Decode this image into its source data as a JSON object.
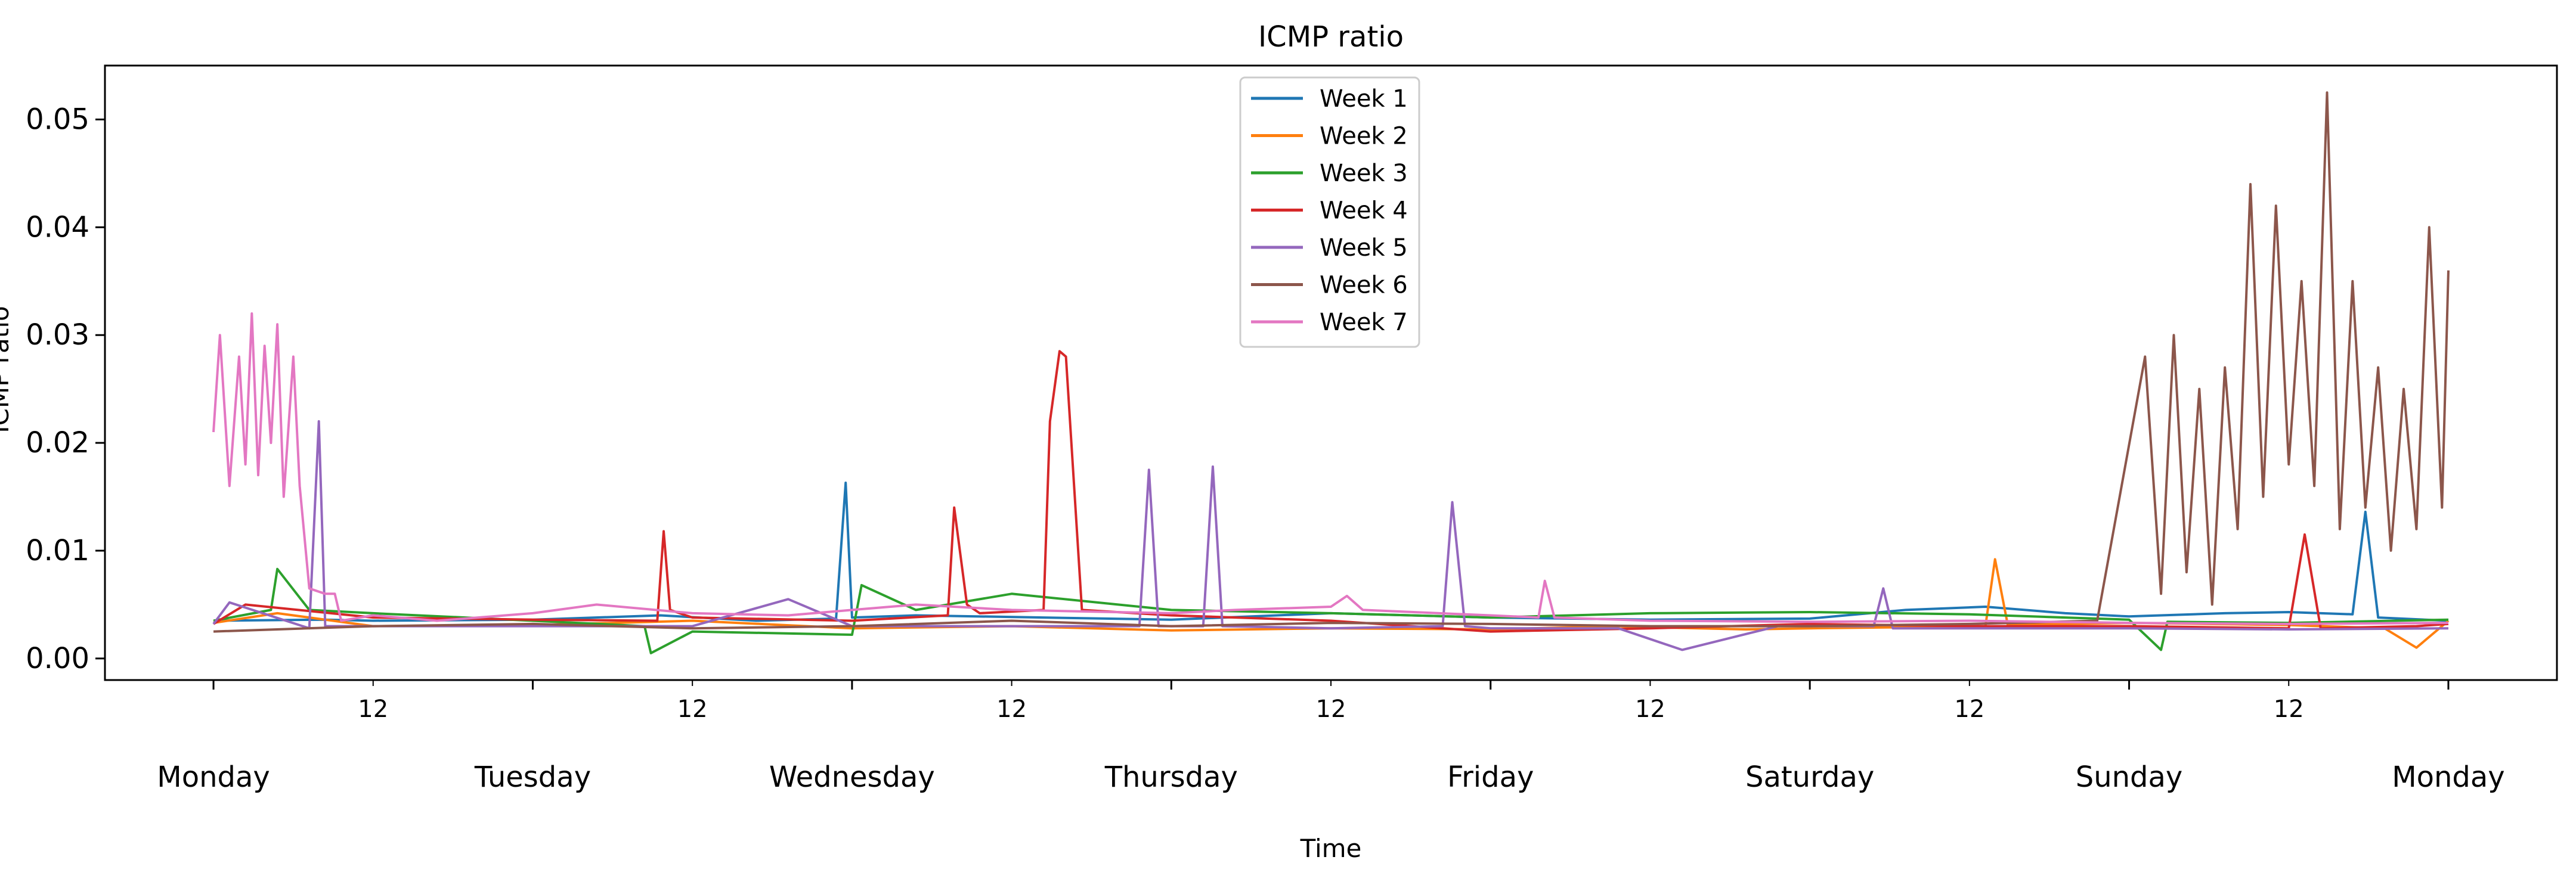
{
  "chart_data": {
    "type": "line",
    "title": "ICMP ratio",
    "xlabel": "Time",
    "ylabel": "ICMP ratio",
    "x_unit": "day of week",
    "xlim": [
      -0.34,
      7.34
    ],
    "ylim": [
      -0.002,
      0.055
    ],
    "yticks": [
      0.0,
      0.01,
      0.02,
      0.03,
      0.04,
      0.05
    ],
    "ytick_labels": [
      "0.00",
      "0.01",
      "0.02",
      "0.03",
      "0.04",
      "0.05"
    ],
    "x_major_ticks": [
      0,
      1,
      2,
      3,
      4,
      5,
      6,
      7
    ],
    "x_major_labels": [
      "Monday",
      "Tuesday",
      "Wednesday",
      "Thursday",
      "Friday",
      "Saturday",
      "Sunday",
      "Monday"
    ],
    "x_minor_ticks": [
      0.5,
      1.5,
      2.5,
      3.5,
      4.5,
      5.5,
      6.5
    ],
    "x_minor_labels": [
      "12",
      "12",
      "12",
      "12",
      "12",
      "12",
      "12"
    ],
    "grid": false,
    "legend_position": "top-center",
    "series": [
      {
        "name": "Week 1",
        "color": "#1f77b4",
        "x": [
          0.0,
          0.35,
          0.5,
          1.0,
          1.4,
          1.7,
          1.95,
          1.98,
          2.0,
          2.2,
          2.6,
          3.0,
          3.5,
          4.0,
          4.5,
          5.0,
          5.3,
          5.55,
          5.8,
          6.0,
          6.3,
          6.5,
          6.7,
          6.74,
          6.78,
          7.0
        ],
        "values": [
          0.0035,
          0.0036,
          0.0035,
          0.0036,
          0.004,
          0.0035,
          0.0037,
          0.0163,
          0.0038,
          0.004,
          0.0038,
          0.0036,
          0.0042,
          0.0038,
          0.0036,
          0.0037,
          0.0045,
          0.0048,
          0.0042,
          0.0039,
          0.0042,
          0.0043,
          0.0041,
          0.0136,
          0.0038,
          0.0035
        ]
      },
      {
        "name": "Week 2",
        "color": "#ff7f0e",
        "x": [
          0.0,
          0.2,
          0.5,
          1.0,
          1.5,
          2.0,
          2.5,
          3.0,
          3.5,
          4.0,
          4.4,
          4.5,
          4.8,
          5.0,
          5.3,
          5.55,
          5.58,
          5.62,
          6.0,
          6.5,
          6.8,
          6.9,
          7.0
        ],
        "values": [
          0.0033,
          0.0042,
          0.003,
          0.0031,
          0.0035,
          0.0028,
          0.003,
          0.0026,
          0.0028,
          0.0027,
          0.003,
          0.0029,
          0.0027,
          0.0028,
          0.0029,
          0.003,
          0.0092,
          0.0031,
          0.0033,
          0.0031,
          0.0028,
          0.001,
          0.0035
        ]
      },
      {
        "name": "Week 3",
        "color": "#2ca02c",
        "x": [
          0.0,
          0.18,
          0.2,
          0.3,
          0.5,
          1.0,
          1.35,
          1.37,
          1.5,
          2.0,
          2.03,
          2.2,
          2.5,
          3.0,
          3.5,
          4.0,
          4.5,
          5.0,
          5.5,
          6.0,
          6.1,
          6.12,
          6.5,
          7.0
        ],
        "values": [
          0.0035,
          0.0045,
          0.0083,
          0.0045,
          0.0042,
          0.0035,
          0.003,
          0.0005,
          0.0025,
          0.0022,
          0.0068,
          0.0045,
          0.006,
          0.0045,
          0.0042,
          0.0038,
          0.0042,
          0.0043,
          0.0041,
          0.0036,
          0.0008,
          0.0034,
          0.0033,
          0.0036
        ]
      },
      {
        "name": "Week 4",
        "color": "#d62728",
        "x": [
          0.0,
          0.1,
          0.5,
          1.0,
          1.39,
          1.41,
          1.43,
          1.5,
          2.0,
          2.3,
          2.32,
          2.36,
          2.4,
          2.6,
          2.62,
          2.65,
          2.67,
          2.72,
          3.0,
          3.5,
          4.0,
          4.5,
          5.0,
          5.5,
          6.0,
          6.5,
          6.55,
          6.6,
          6.9,
          7.0
        ],
        "values": [
          0.0032,
          0.005,
          0.0038,
          0.0036,
          0.0035,
          0.0118,
          0.0045,
          0.0038,
          0.0035,
          0.004,
          0.014,
          0.005,
          0.0042,
          0.0045,
          0.022,
          0.0285,
          0.028,
          0.0045,
          0.004,
          0.0035,
          0.0025,
          0.0028,
          0.0032,
          0.003,
          0.003,
          0.0028,
          0.0115,
          0.0028,
          0.003,
          0.0032
        ]
      },
      {
        "name": "Week 5",
        "color": "#9467bd",
        "x": [
          0.0,
          0.05,
          0.3,
          0.33,
          0.35,
          0.5,
          1.0,
          1.5,
          1.8,
          2.0,
          2.5,
          2.9,
          2.93,
          2.96,
          3.0,
          3.1,
          3.13,
          3.16,
          3.5,
          3.85,
          3.88,
          3.92,
          4.0,
          4.4,
          4.6,
          4.9,
          5.2,
          5.23,
          5.26,
          5.5,
          6.0,
          6.5,
          7.0
        ],
        "values": [
          0.0032,
          0.0052,
          0.0028,
          0.022,
          0.003,
          0.003,
          0.003,
          0.003,
          0.0055,
          0.003,
          0.003,
          0.003,
          0.0175,
          0.003,
          0.003,
          0.003,
          0.0178,
          0.003,
          0.0028,
          0.003,
          0.0145,
          0.003,
          0.0028,
          0.0028,
          0.0008,
          0.003,
          0.003,
          0.0065,
          0.0028,
          0.0028,
          0.0028,
          0.0027,
          0.0028
        ]
      },
      {
        "name": "Week 6",
        "color": "#8c564b",
        "x": [
          0.0,
          0.5,
          1.0,
          1.5,
          2.0,
          2.5,
          3.0,
          3.5,
          4.0,
          4.5,
          5.0,
          5.5,
          5.9,
          6.05,
          6.1,
          6.14,
          6.18,
          6.22,
          6.26,
          6.3,
          6.34,
          6.38,
          6.42,
          6.46,
          6.5,
          6.54,
          6.58,
          6.62,
          6.66,
          6.7,
          6.74,
          6.78,
          6.82,
          6.86,
          6.9,
          6.94,
          6.98,
          7.0
        ],
        "values": [
          0.0025,
          0.003,
          0.0032,
          0.0028,
          0.003,
          0.0035,
          0.003,
          0.0033,
          0.0032,
          0.003,
          0.003,
          0.0032,
          0.0035,
          0.028,
          0.006,
          0.03,
          0.008,
          0.025,
          0.005,
          0.027,
          0.012,
          0.044,
          0.015,
          0.042,
          0.018,
          0.035,
          0.016,
          0.0525,
          0.012,
          0.035,
          0.014,
          0.027,
          0.01,
          0.025,
          0.012,
          0.04,
          0.014,
          0.036
        ]
      },
      {
        "name": "Week 7",
        "color": "#e377c2",
        "x": [
          0.0,
          0.02,
          0.05,
          0.08,
          0.1,
          0.12,
          0.14,
          0.16,
          0.18,
          0.2,
          0.22,
          0.25,
          0.27,
          0.3,
          0.35,
          0.38,
          0.4,
          0.5,
          0.7,
          1.0,
          1.2,
          1.5,
          1.8,
          2.0,
          2.2,
          2.5,
          3.0,
          3.2,
          3.5,
          3.55,
          3.6,
          4.0,
          4.15,
          4.17,
          4.2,
          4.5,
          5.0,
          5.5,
          6.0,
          6.5,
          7.0
        ],
        "values": [
          0.021,
          0.03,
          0.016,
          0.028,
          0.018,
          0.032,
          0.017,
          0.029,
          0.02,
          0.031,
          0.015,
          0.028,
          0.016,
          0.0065,
          0.006,
          0.006,
          0.0035,
          0.004,
          0.0035,
          0.0042,
          0.005,
          0.0042,
          0.004,
          0.0045,
          0.005,
          0.0045,
          0.0042,
          0.0045,
          0.0048,
          0.0058,
          0.0045,
          0.004,
          0.0038,
          0.0072,
          0.0038,
          0.0035,
          0.0034,
          0.0035,
          0.0033,
          0.0032,
          0.0033
        ]
      }
    ]
  }
}
